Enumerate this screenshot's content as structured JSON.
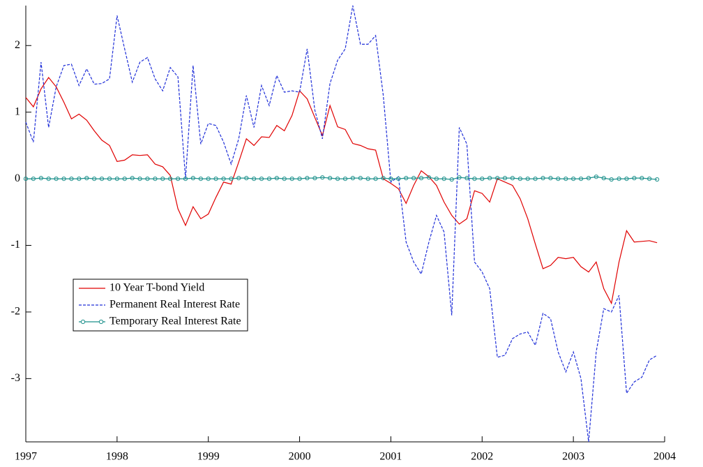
{
  "chart_data": {
    "type": "line",
    "x": [
      1997,
      1997.083,
      1997.167,
      1997.25,
      1997.333,
      1997.417,
      1997.5,
      1997.583,
      1997.667,
      1997.75,
      1997.833,
      1997.917,
      1998,
      1998.083,
      1998.167,
      1998.25,
      1998.333,
      1998.417,
      1998.5,
      1998.583,
      1998.667,
      1998.75,
      1998.833,
      1998.917,
      1999,
      1999.083,
      1999.167,
      1999.25,
      1999.333,
      1999.417,
      1999.5,
      1999.583,
      1999.667,
      1999.75,
      1999.833,
      1999.917,
      2000,
      2000.083,
      2000.167,
      2000.25,
      2000.333,
      2000.417,
      2000.5,
      2000.583,
      2000.667,
      2000.75,
      2000.833,
      2000.917,
      2001,
      2001.083,
      2001.167,
      2001.25,
      2001.333,
      2001.417,
      2001.5,
      2001.583,
      2001.667,
      2001.75,
      2001.833,
      2001.917,
      2002,
      2002.083,
      2002.167,
      2002.25,
      2002.333,
      2002.417,
      2002.5,
      2002.583,
      2002.667,
      2002.75,
      2002.833,
      2002.917,
      2003,
      2003.083,
      2003.167,
      2003.25,
      2003.333,
      2003.417,
      2003.5,
      2003.583,
      2003.667,
      2003.75,
      2003.833,
      2003.917
    ],
    "series": [
      {
        "name": "10 Year T-bond Yield",
        "color": "#e00000",
        "line_style": "solid",
        "values": [
          1.22,
          1.08,
          1.35,
          1.52,
          1.38,
          1.15,
          0.9,
          0.97,
          0.88,
          0.72,
          0.58,
          0.5,
          0.26,
          0.28,
          0.36,
          0.35,
          0.36,
          0.22,
          0.18,
          0.05,
          -0.45,
          -0.7,
          -0.42,
          -0.6,
          -0.53,
          -0.28,
          -0.05,
          -0.08,
          0.25,
          0.6,
          0.5,
          0.63,
          0.62,
          0.8,
          0.72,
          0.95,
          1.32,
          1.2,
          0.92,
          0.65,
          1.1,
          0.78,
          0.74,
          0.53,
          0.5,
          0.45,
          0.43,
          0.0,
          -0.07,
          -0.15,
          -0.37,
          -0.1,
          0.12,
          0.03,
          -0.1,
          -0.35,
          -0.55,
          -0.68,
          -0.6,
          -0.18,
          -0.22,
          -0.35,
          0.0,
          -0.05,
          -0.1,
          -0.3,
          -0.6,
          -0.98,
          -1.35,
          -1.3,
          -1.18,
          -1.2,
          -1.18,
          -1.32,
          -1.4,
          -1.25,
          -1.65,
          -1.87,
          -1.25,
          -0.78,
          -0.95,
          -0.94,
          -0.93,
          -0.96
        ]
      },
      {
        "name": "Permanent Real Interest Rate",
        "color": "#1f2fd8",
        "line_style": "dashed",
        "values": [
          0.85,
          0.55,
          1.75,
          0.77,
          1.38,
          1.7,
          1.72,
          1.4,
          1.65,
          1.42,
          1.43,
          1.5,
          2.45,
          1.95,
          1.45,
          1.75,
          1.82,
          1.5,
          1.32,
          1.67,
          1.53,
          0.0,
          1.7,
          0.52,
          0.83,
          0.8,
          0.55,
          0.22,
          0.6,
          1.25,
          0.77,
          1.4,
          1.1,
          1.55,
          1.3,
          1.32,
          1.3,
          1.95,
          1.03,
          0.6,
          1.43,
          1.78,
          1.95,
          2.6,
          2.02,
          2.02,
          2.15,
          1.25,
          -0.05,
          0.03,
          -0.95,
          -1.25,
          -1.43,
          -0.95,
          -0.55,
          -0.8,
          -2.05,
          0.77,
          0.52,
          -1.25,
          -1.4,
          -1.65,
          -2.68,
          -2.65,
          -2.4,
          -2.33,
          -2.3,
          -2.5,
          -2.02,
          -2.1,
          -2.6,
          -2.9,
          -2.6,
          -3.0,
          -3.95,
          -2.6,
          -1.95,
          -2.0,
          -1.75,
          -3.22,
          -3.05,
          -2.98,
          -2.72,
          -2.65
        ]
      },
      {
        "name": "Temporary Real Interest Rate",
        "color": "#1a8f8a",
        "line_style": "solid",
        "marker": "circle",
        "values": [
          0,
          0,
          0.01,
          0,
          0,
          0,
          0,
          0,
          0.01,
          0,
          0,
          0,
          0,
          0,
          0.01,
          0,
          0,
          0,
          0,
          0,
          0,
          0,
          0.01,
          0,
          0,
          0,
          0,
          0,
          0.01,
          0.01,
          0,
          0,
          0,
          0.01,
          0,
          0,
          0,
          0.01,
          0.01,
          0.02,
          0.01,
          0,
          0,
          0.01,
          0.01,
          0,
          0,
          0.01,
          0,
          0,
          0.01,
          0.01,
          0.01,
          0.02,
          0,
          0,
          -0.01,
          0.02,
          0.01,
          0,
          0,
          0.01,
          0.01,
          0.01,
          0.01,
          0,
          0,
          0,
          0.01,
          0.01,
          0,
          0,
          0,
          0,
          0.01,
          0.03,
          0.01,
          -0.01,
          0,
          0,
          0.01,
          0.01,
          0,
          -0.01
        ]
      }
    ],
    "xlim": [
      1997,
      2004
    ],
    "xticks": [
      1997,
      1998,
      1999,
      2000,
      2001,
      2002,
      2003,
      2004
    ],
    "ylim": [
      -3.95,
      2.6
    ],
    "yticks": [
      -3,
      -2,
      -1,
      0,
      1,
      2
    ],
    "grid": false,
    "legend": "lower-left"
  }
}
